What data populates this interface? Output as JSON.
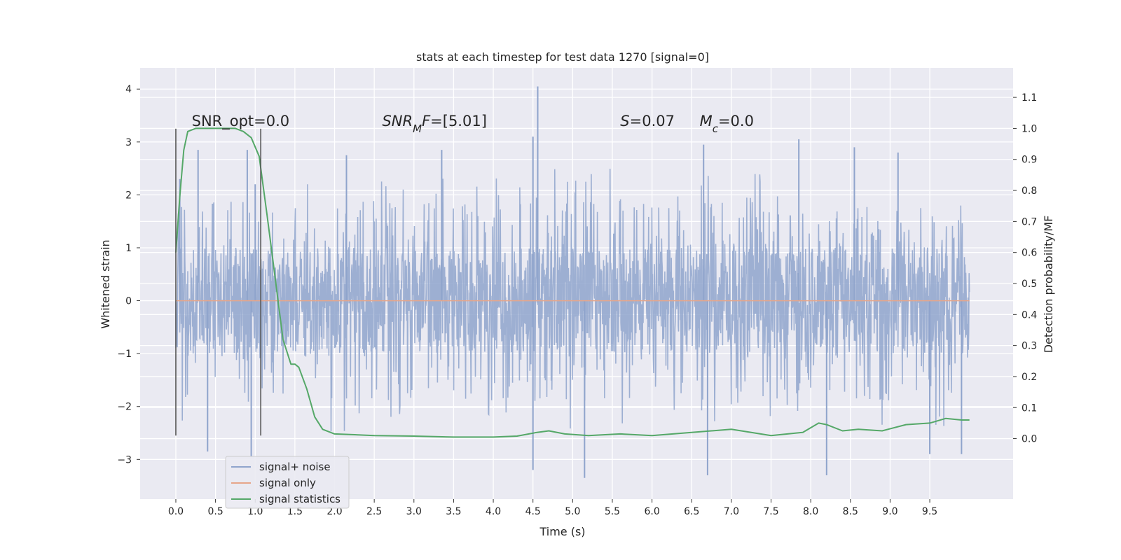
{
  "chart_data": {
    "type": "line",
    "title": "stats at each timestep for test data 1270 [signal=0]",
    "xlabel": "Time (s)",
    "ylabel": "Whitened strain",
    "y2label": "Detection probability/MF",
    "xlim": [
      -0.45,
      10.55
    ],
    "ylim": [
      -3.75,
      4.4
    ],
    "y2lim": [
      -0.195,
      1.195
    ],
    "x_ticks": [
      0.0,
      0.5,
      1.0,
      1.5,
      2.0,
      2.5,
      3.0,
      3.5,
      4.0,
      4.5,
      5.0,
      5.5,
      6.0,
      6.5,
      7.0,
      7.5,
      8.0,
      8.5,
      9.0,
      9.5
    ],
    "x_tick_labels": [
      "0.0",
      "0.5",
      "1.0",
      "1.5",
      "2.0",
      "2.5",
      "3.0",
      "3.5",
      "4.0",
      "4.5",
      "5.0",
      "5.5",
      "6.0",
      "6.5",
      "7.0",
      "7.5",
      "8.0",
      "8.5",
      "9.0",
      "9.5"
    ],
    "y_ticks": [
      -3,
      -2,
      -1,
      0,
      1,
      2,
      3,
      4
    ],
    "y_tick_labels": [
      "−3",
      "−2",
      "−1",
      "0",
      "1",
      "2",
      "3",
      "4"
    ],
    "y2_ticks": [
      0.0,
      0.1,
      0.2,
      0.3,
      0.4,
      0.5,
      0.6,
      0.7,
      0.8,
      0.9,
      1.0,
      1.1
    ],
    "y2_tick_labels": [
      "0.0",
      "0.1",
      "0.2",
      "0.3",
      "0.4",
      "0.5",
      "0.6",
      "0.7",
      "0.8",
      "0.9",
      "1.0",
      "1.1"
    ],
    "grid": true,
    "legend_position": "lower-left",
    "annotations": [
      {
        "id": "snr-opt",
        "x": 0.2,
        "y": 3.3,
        "parts": [
          {
            "t": "SNR_opt=0.0",
            "italic": false
          }
        ]
      },
      {
        "id": "snr-mf",
        "x": 2.6,
        "y": 3.3,
        "parts": [
          {
            "t": "SNR",
            "italic": true
          },
          {
            "t": "M",
            "italic": true,
            "sub": true
          },
          {
            "t": "F",
            "italic": true
          },
          {
            "t": "=[5.01]",
            "italic": false
          }
        ]
      },
      {
        "id": "s-value",
        "x": 5.6,
        "y": 3.3,
        "parts": [
          {
            "t": "S",
            "italic": true
          },
          {
            "t": "=0.07",
            "italic": false
          }
        ]
      },
      {
        "id": "mc-value",
        "x": 6.6,
        "y": 3.3,
        "parts": [
          {
            "t": "M",
            "italic": true
          },
          {
            "t": "c",
            "italic": true,
            "sub": true
          },
          {
            "t": "=0.0",
            "italic": false
          }
        ]
      }
    ],
    "vertical_lines": [
      {
        "x": 0.0,
        "y_from": -2.55,
        "y_to": 3.25
      },
      {
        "x": 1.07,
        "y_from": -2.55,
        "y_to": 3.25
      }
    ],
    "series": [
      {
        "name": "signal+ noise",
        "axis": "left",
        "color": "#8fa4cc",
        "render": "noise",
        "x_range": [
          0.0,
          10.0
        ],
        "samples": 2200,
        "typical_min": -1.0,
        "typical_max": 1.0,
        "peaks": [
          {
            "x": 0.05,
            "y": 2.3
          },
          {
            "x": 0.28,
            "y": 2.85
          },
          {
            "x": 0.9,
            "y": 2.85
          },
          {
            "x": 1.0,
            "y": 2.2
          },
          {
            "x": 2.15,
            "y": 2.75
          },
          {
            "x": 3.35,
            "y": 2.85
          },
          {
            "x": 4.5,
            "y": 3.1
          },
          {
            "x": 4.56,
            "y": 4.05
          },
          {
            "x": 6.65,
            "y": 2.95
          },
          {
            "x": 7.85,
            "y": 3.05
          },
          {
            "x": 8.55,
            "y": 2.9
          },
          {
            "x": 9.1,
            "y": 2.8
          },
          {
            "x": 0.4,
            "y": -2.85
          },
          {
            "x": 0.95,
            "y": -2.95
          },
          {
            "x": 4.5,
            "y": -3.2
          },
          {
            "x": 5.15,
            "y": -3.35
          },
          {
            "x": 6.7,
            "y": -3.3
          },
          {
            "x": 8.2,
            "y": -3.3
          },
          {
            "x": 9.5,
            "y": -2.9
          },
          {
            "x": 9.9,
            "y": -2.9
          }
        ]
      },
      {
        "name": "signal only",
        "axis": "left",
        "color": "#e6a68a",
        "x": [
          0.0,
          10.0
        ],
        "y": [
          0.0,
          0.0
        ]
      },
      {
        "name": "signal statistics",
        "axis": "right",
        "color": "#55a868",
        "x": [
          0.0,
          0.05,
          0.1,
          0.15,
          0.25,
          0.5,
          0.75,
          0.85,
          0.95,
          1.05,
          1.15,
          1.25,
          1.35,
          1.45,
          1.5,
          1.55,
          1.65,
          1.75,
          1.85,
          2.0,
          2.5,
          3.0,
          3.5,
          4.0,
          4.3,
          4.55,
          4.7,
          4.9,
          5.2,
          5.6,
          6.0,
          6.5,
          7.0,
          7.5,
          7.9,
          8.1,
          8.2,
          8.4,
          8.6,
          8.9,
          9.2,
          9.5,
          9.7,
          9.9,
          10.0
        ],
        "y": [
          0.6,
          0.78,
          0.93,
          0.99,
          1.0,
          1.0,
          1.0,
          0.99,
          0.97,
          0.91,
          0.72,
          0.52,
          0.32,
          0.24,
          0.24,
          0.23,
          0.16,
          0.07,
          0.03,
          0.015,
          0.01,
          0.008,
          0.005,
          0.005,
          0.008,
          0.02,
          0.025,
          0.015,
          0.01,
          0.015,
          0.01,
          0.02,
          0.03,
          0.01,
          0.02,
          0.05,
          0.045,
          0.025,
          0.03,
          0.025,
          0.045,
          0.05,
          0.065,
          0.06,
          0.06
        ]
      }
    ]
  }
}
